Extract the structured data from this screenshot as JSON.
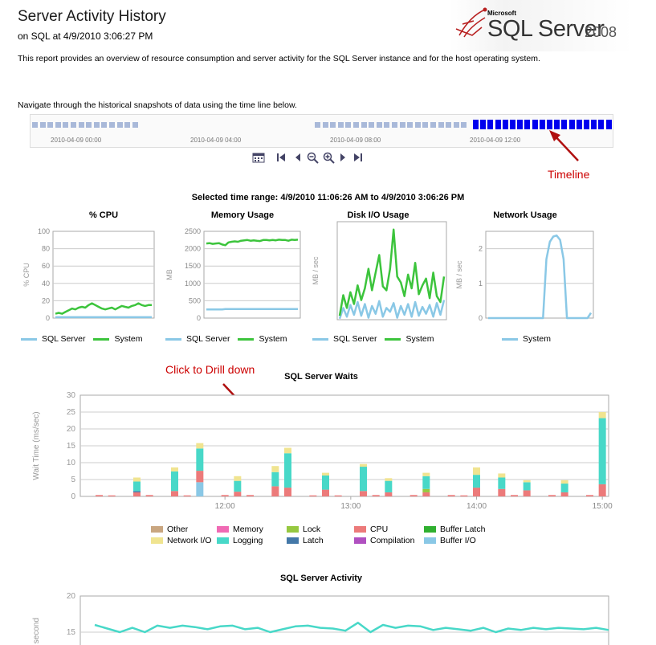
{
  "header": {
    "title": "Server Activity History",
    "subtitle": "on SQL at 4/9/2010 3:06:27 PM",
    "description": "This report provides an overview of resource consumption and server activity for the SQL Server instance and for the host operating system."
  },
  "logo": {
    "small": "Microsoft",
    "main": "SQL Server",
    "year": "2008"
  },
  "timeline": {
    "instruction": "Navigate through the historical snapshots of data using the time line below.",
    "ticks": [
      "2010-04-09  00:00",
      "2010-04-09  04:00",
      "2010-04-09  08:00",
      "2010-04-09  12:00"
    ],
    "annotation": "Timeline",
    "colors": {
      "dim": "#a9b9d9",
      "active": "#0000ee"
    },
    "controls": [
      "calendar-icon",
      "first-icon",
      "previous-icon",
      "zoom-out-icon",
      "zoom-in-icon",
      "next-icon",
      "last-icon"
    ]
  },
  "selected_range": "Selected time range: 4/9/2010 11:06:26 AM to 4/9/2010 3:06:26 PM",
  "drill_annotation": "Click to Drill down",
  "colors": {
    "sql_server": "#8ac8e6",
    "system": "#3cc43c",
    "other": "#c9a680",
    "memory": "#f06ab4",
    "lock": "#96c840",
    "cpu": "#ec7a7a",
    "buffer_latch": "#30b030",
    "network_io": "#f0e490",
    "logging": "#48d8c8",
    "latch": "#4478a8",
    "compilation": "#b050c0",
    "buffer_io": "#8ac8e6",
    "activity": "#48d8c8"
  },
  "chart_data": [
    {
      "id": "cpu",
      "type": "line",
      "title": "% CPU",
      "ylabel": "% CPU",
      "ylim": [
        0,
        100
      ],
      "yticks": [
        0,
        20,
        40,
        60,
        80,
        100
      ],
      "series": [
        {
          "name": "SQL Server",
          "values": [
            1,
            1,
            1,
            1,
            1,
            1,
            1,
            1,
            1,
            1,
            1,
            1,
            1,
            1,
            1,
            1,
            1,
            1,
            1,
            1,
            1,
            1,
            1,
            1,
            1,
            1,
            1,
            1,
            1,
            1
          ]
        },
        {
          "name": "System",
          "values": [
            5,
            6,
            5,
            7,
            9,
            11,
            10,
            12,
            13,
            12,
            15,
            17,
            15,
            13,
            11,
            10,
            11,
            12,
            10,
            12,
            14,
            13,
            12,
            14,
            15,
            17,
            15,
            14,
            15,
            15
          ]
        }
      ]
    },
    {
      "id": "memory",
      "type": "line",
      "title": "Memory Usage",
      "ylabel": "MB",
      "ylim": [
        0,
        2500
      ],
      "yticks": [
        0,
        500,
        1000,
        1500,
        2000,
        2500
      ],
      "series": [
        {
          "name": "SQL Server",
          "values": [
            250,
            250,
            250,
            250,
            250,
            250,
            260,
            260,
            260,
            260,
            260,
            260,
            260,
            260,
            260,
            260,
            260,
            260,
            260,
            260,
            260,
            260,
            260,
            260,
            260,
            260,
            260,
            260,
            260,
            260
          ]
        },
        {
          "name": "System",
          "values": [
            2150,
            2160,
            2140,
            2150,
            2160,
            2120,
            2100,
            2180,
            2200,
            2210,
            2200,
            2230,
            2240,
            2250,
            2230,
            2240,
            2230,
            2220,
            2250,
            2250,
            2240,
            2250,
            2240,
            2260,
            2250,
            2250,
            2230,
            2260,
            2250,
            2260
          ]
        }
      ]
    },
    {
      "id": "disk",
      "type": "line",
      "title": "Disk I/O Usage",
      "ylabel": "MB / sec",
      "ylim": [
        0,
        10
      ],
      "yticks": [],
      "series": [
        {
          "name": "SQL Server",
          "values": [
            0.1,
            1.2,
            0.3,
            1.5,
            0.5,
            1.8,
            0.4,
            1.6,
            0.2,
            1.4,
            0.6,
            1.9,
            0.3,
            1.2,
            0.8,
            1.7,
            0.2,
            1.4,
            0.5,
            1.6,
            0.3,
            1.8,
            0.4,
            1.3,
            0.6,
            1.5,
            0.3,
            1.7,
            0.5,
            2.0
          ]
        },
        {
          "name": "System",
          "values": [
            0.4,
            2.5,
            1.2,
            2.8,
            1.6,
            3.5,
            2.0,
            3.2,
            5.2,
            3.0,
            4.8,
            6.6,
            3.4,
            3.0,
            5.2,
            9.2,
            4.4,
            3.8,
            2.4,
            4.6,
            3.2,
            5.8,
            2.6,
            3.5,
            4.2,
            2.2,
            4.8,
            2.4,
            1.8,
            4.4
          ]
        }
      ]
    },
    {
      "id": "network",
      "type": "line",
      "title": "Network Usage",
      "ylabel": "MB / sec",
      "ylim": [
        0,
        2.5
      ],
      "yticks": [
        0,
        1,
        2
      ],
      "series": [
        {
          "name": "System",
          "values": [
            0,
            0,
            0,
            0,
            0,
            0,
            0,
            0,
            0,
            0,
            0,
            0,
            0,
            0,
            0,
            0,
            0,
            1.7,
            2.2,
            2.35,
            2.38,
            2.25,
            1.7,
            0,
            0,
            0,
            0,
            0,
            0,
            0,
            0.15
          ]
        }
      ]
    },
    {
      "id": "waits",
      "type": "bar",
      "stacked": true,
      "title": "SQL Server Waits",
      "ylabel": "Wait Time (ms/sec)",
      "ylim": [
        0,
        30
      ],
      "yticks": [
        0,
        5,
        10,
        15,
        20,
        25,
        30
      ],
      "x_ticks": [
        "12:00",
        "13:00",
        "14:00",
        "15:00"
      ],
      "x_tick_positions": [
        11,
        21,
        31,
        41
      ],
      "series": [
        {
          "name": "Other",
          "color_key": "other"
        },
        {
          "name": "Memory",
          "color_key": "memory"
        },
        {
          "name": "Lock",
          "color_key": "lock"
        },
        {
          "name": "CPU",
          "color_key": "cpu"
        },
        {
          "name": "Buffer Latch",
          "color_key": "buffer_latch"
        },
        {
          "name": "Network I/O",
          "color_key": "network_io"
        },
        {
          "name": "Logging",
          "color_key": "logging"
        },
        {
          "name": "Latch",
          "color_key": "latch"
        },
        {
          "name": "Compilation",
          "color_key": "compilation"
        },
        {
          "name": "Buffer I/O",
          "color_key": "buffer_io"
        }
      ],
      "bars": [
        {
          "cpu": 0.4
        },
        {
          "cpu": 0.3
        },
        {
          "cpu": 1.2,
          "latch": 0.4,
          "logging": 2.8,
          "network_io": 1.2
        },
        {
          "cpu": 0.4
        },
        {
          "cpu": 1.6,
          "logging": 5.8,
          "network_io": 1.2
        },
        {
          "cpu": 0.3
        },
        {
          "buffer_io": 4.2,
          "cpu": 3.4,
          "logging": 6.6,
          "network_io": 1.6
        },
        {
          "cpu": 0.4
        },
        {
          "cpu": 1.4,
          "logging": 3.2,
          "network_io": 1.4
        },
        {
          "cpu": 0.4
        },
        {
          "cpu": 3.0,
          "logging": 4.2,
          "network_io": 1.8
        },
        {
          "cpu": 2.6,
          "logging": 10.2,
          "network_io": 1.6
        },
        {
          "cpu": 0.3
        },
        {
          "cpu": 2.0,
          "logging": 4.2,
          "network_io": 0.8
        },
        {
          "cpu": 0.3
        },
        {
          "cpu": 1.6,
          "logging": 7.2,
          "network_io": 0.8
        },
        {
          "cpu": 0.4
        },
        {
          "cpu": 1.2,
          "logging": 3.4,
          "network_io": 0.8
        },
        {
          "cpu": 0.4
        },
        {
          "cpu": 1.2,
          "lock": 1.0,
          "logging": 3.8,
          "network_io": 1.0
        },
        {
          "cpu": 0.4
        },
        {
          "cpu": 0.3
        },
        {
          "cpu": 2.6,
          "logging": 3.8,
          "network_io": 2.2
        },
        {
          "cpu": 2.2,
          "logging": 3.4,
          "network_io": 1.2
        },
        {
          "cpu": 0.4
        },
        {
          "cpu": 1.8,
          "logging": 2.4,
          "network_io": 0.6
        },
        {
          "cpu": 0.4
        },
        {
          "cpu": 1.2,
          "logging": 2.6,
          "network_io": 1.0
        },
        {
          "cpu": 0.4
        },
        {
          "cpu": 3.6,
          "logging": 19.6,
          "network_io": 1.8
        }
      ]
    },
    {
      "id": "activity",
      "type": "line",
      "title": "SQL Server Activity",
      "ylabel": "/ second",
      "ylim": [
        10,
        20
      ],
      "yticks": [
        15,
        20
      ],
      "series": [
        {
          "values": [
            16,
            15.5,
            15,
            15.6,
            15,
            15.9,
            15.6,
            15.9,
            15.7,
            15.4,
            15.8,
            15.9,
            15.4,
            15.6,
            15,
            15.4,
            15.8,
            15.9,
            15.6,
            15.5,
            15.2,
            16.3,
            15,
            16,
            15.6,
            15.9,
            15.8,
            15.3,
            15.6,
            15.4,
            15.2,
            15.6,
            15.0,
            15.5,
            15.3,
            15.6,
            15.4,
            15.6,
            15.5,
            15.4,
            15.6,
            15.3
          ]
        }
      ]
    }
  ],
  "legends": {
    "cpu": [
      "SQL Server",
      "System"
    ],
    "memory": [
      "SQL Server",
      "System"
    ],
    "disk": [
      "SQL Server",
      "System"
    ],
    "network": [
      "System"
    ]
  }
}
